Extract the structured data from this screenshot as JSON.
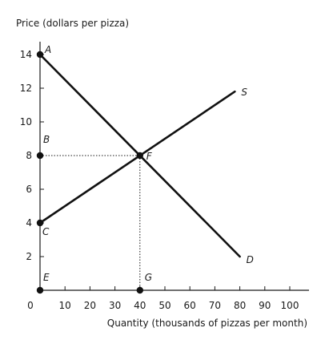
{
  "chart_data": {
    "type": "line",
    "title": "",
    "ylabel": "Price (dollars per pizza)",
    "xlabel": "Quantity (thousands of pizzas per month)",
    "xlim": [
      0,
      100
    ],
    "ylim": [
      0,
      14
    ],
    "x_ticks": [
      0,
      10,
      20,
      30,
      40,
      50,
      60,
      70,
      80,
      90,
      100
    ],
    "y_ticks": [
      2,
      4,
      6,
      8,
      10,
      12,
      14
    ],
    "grid": false,
    "series": [
      {
        "name": "S",
        "x": [
          0,
          78
        ],
        "y": [
          4,
          11.8
        ]
      },
      {
        "name": "D",
        "x": [
          0,
          80
        ],
        "y": [
          14,
          2
        ]
      }
    ],
    "points": [
      {
        "label": "A",
        "x": 0,
        "y": 14,
        "marker": true
      },
      {
        "label": "B",
        "x": 0,
        "y": 8,
        "marker": true
      },
      {
        "label": "C",
        "x": 0,
        "y": 4,
        "marker": true
      },
      {
        "label": "E",
        "x": 0,
        "y": 0,
        "marker": true
      },
      {
        "label": "F",
        "x": 40,
        "y": 8,
        "marker": true
      },
      {
        "label": "G",
        "x": 40,
        "y": 0,
        "marker": true
      }
    ],
    "guides": [
      {
        "from": [
          0,
          8
        ],
        "to": [
          40,
          8
        ]
      },
      {
        "from": [
          40,
          8
        ],
        "to": [
          40,
          0
        ]
      }
    ]
  }
}
